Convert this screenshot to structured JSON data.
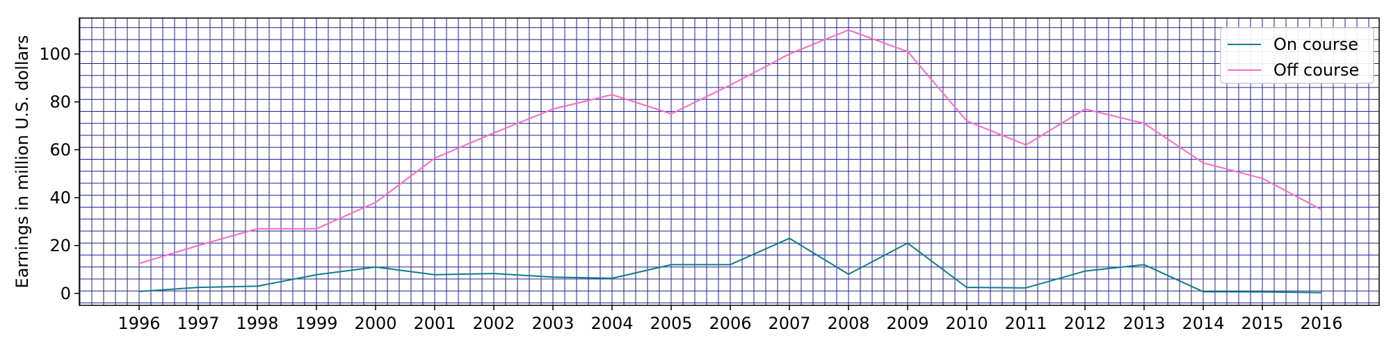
{
  "chart_data": {
    "type": "line",
    "x": [
      "1996",
      "1997",
      "1998",
      "1999",
      "2000",
      "2001",
      "2002",
      "2003",
      "2004",
      "2005",
      "2006",
      "2007",
      "2008",
      "2009",
      "2010",
      "2011",
      "2012",
      "2013",
      "2014",
      "2015",
      "2016"
    ],
    "series": [
      {
        "name": "On course",
        "color": "#0f7a86",
        "values": [
          0.8,
          2.5,
          3.0,
          7.8,
          11.0,
          7.8,
          8.3,
          6.8,
          6.3,
          12.0,
          12.0,
          23.0,
          8.0,
          21.0,
          2.5,
          2.3,
          9.3,
          12.0,
          0.7,
          0.6,
          0.3
        ]
      },
      {
        "name": "Off course",
        "color": "#ff69c1",
        "values": [
          12.5,
          20.0,
          27.0,
          27.0,
          38.0,
          56.5,
          67.0,
          77.0,
          83.0,
          75.0,
          87.0,
          100.0,
          110.0,
          101.0,
          72.0,
          62.0,
          77.0,
          71.0,
          54.5,
          48.0,
          35.0
        ]
      }
    ],
    "ylabel": "Earnings in million U.S. dollars",
    "xlabel": "",
    "yticks": [
      "0",
      "20",
      "40",
      "60",
      "80",
      "100"
    ],
    "ylim": [
      -5,
      115
    ],
    "grid": true,
    "grid_color": "#1f1f8f",
    "legend_position": "top-right"
  }
}
